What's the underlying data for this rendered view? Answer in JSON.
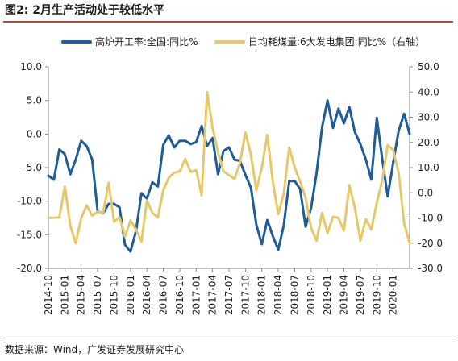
{
  "title": "图2:  2月生产活动处于较低水平",
  "source": "数据来源：Wind，广发证券发展研究中心",
  "colors": {
    "series1": "#1f5d99",
    "series2": "#e6c86a",
    "axis": "#888888",
    "rule": "#b24a3a"
  },
  "chart_data": {
    "type": "line",
    "title": "图2:  2月生产活动处于较低水平",
    "legend_position": "top",
    "grid": false,
    "x_tick_labels": [
      "2014-10",
      "2015-01",
      "2015-04",
      "2015-07",
      "2015-10",
      "2016-01",
      "2016-04",
      "2016-07",
      "2016-10",
      "2017-01",
      "2017-04",
      "2017-07",
      "2017-10",
      "2018-01",
      "2018-04",
      "2018-07",
      "2018-10",
      "2019-01",
      "2019-04",
      "2019-07",
      "2019-10",
      "2020-01"
    ],
    "y_left": {
      "range": [
        -20,
        10
      ],
      "ticks": [
        "10.0",
        "5.0",
        "0.0",
        "-5.0",
        "-10.0",
        "-15.0",
        "-20.0"
      ]
    },
    "y_right": {
      "range": [
        -30,
        50
      ],
      "ticks": [
        "50.0",
        "40.0",
        "30.0",
        "20.0",
        "10.0",
        "0.0",
        "-10.0",
        "-20.0",
        "-30.0"
      ]
    },
    "series": [
      {
        "name": "高炉开工率:全国:同比%",
        "axis": "left",
        "values": [
          -6.2,
          -6.8,
          -2.3,
          -3.0,
          -6.0,
          -3.8,
          -1.0,
          -1.8,
          -3.8,
          -11.5,
          -11.8,
          -10.4,
          -10.4,
          -10.9,
          -16.5,
          -17.5,
          -14.5,
          -8.8,
          -9.6,
          -7.2,
          -7.8,
          -1.6,
          -0.2,
          -2.0,
          -1.0,
          -1.0,
          -1.5,
          -1.2,
          1.2,
          -1.8,
          -0.6,
          -6.0,
          -2.5,
          -2.0,
          -3.8,
          -4.0,
          -6.1,
          -8.0,
          -13.5,
          -16.4,
          -12.8,
          -15.2,
          -17.2,
          -13.6,
          -7.0,
          -7.0,
          -8.2,
          -13.8,
          -11.0,
          -5.8,
          1.0,
          5.0,
          0.9,
          3.8,
          1.6,
          4.0,
          0.3,
          -1.5,
          -3.8,
          -6.8,
          2.4,
          -3.8,
          -9.3,
          -4.3,
          0.5,
          3.0,
          0.0
        ]
      },
      {
        "name": "日均耗煤量:6大发电集团:同比%（右轴）",
        "axis": "right",
        "values": [
          -10.0,
          -9.9,
          -9.8,
          2.5,
          -13.0,
          -20.0,
          -10.0,
          -5.0,
          -9.0,
          -7.5,
          -8.0,
          4.0,
          -11.5,
          -9.7,
          -17.4,
          -11.0,
          -14.5,
          -19.4,
          -3.0,
          -8.0,
          -9.7,
          1.0,
          6.0,
          8.0,
          8.5,
          13.5,
          8.3,
          9.0,
          -1.0,
          40.0,
          26.0,
          16.0,
          8.5,
          7.0,
          5.5,
          12.0,
          24.0,
          15.0,
          1.0,
          10.0,
          23.0,
          4.5,
          -8.5,
          -0.3,
          18.0,
          10.0,
          4.5,
          -2.0,
          -14.0,
          -19.0,
          -8.0,
          -16.0,
          -9.5,
          -10.0,
          -15.0,
          3.0,
          -6.0,
          -19.0,
          -10.5,
          -14.5,
          -4.0,
          5.0,
          19.0,
          17.0,
          8.0,
          -12.0,
          -20.0
        ]
      }
    ]
  }
}
